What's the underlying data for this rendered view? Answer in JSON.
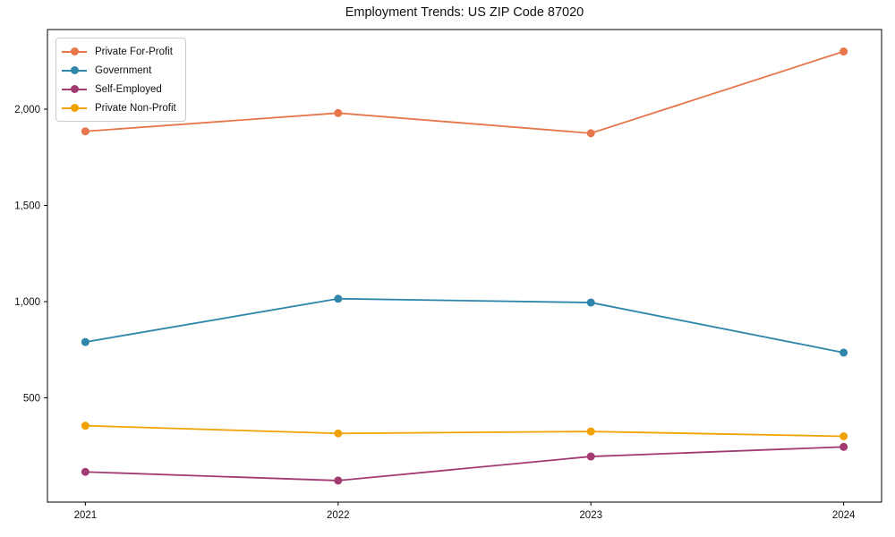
{
  "page": {
    "background": "#ffffff",
    "text_color": "#111111",
    "spine_color": "#000000"
  },
  "chart_data": {
    "type": "line",
    "title": "Employment Trends: US ZIP Code 87020",
    "xlabel": "",
    "ylabel": "",
    "x": [
      2021,
      2022,
      2023,
      2024
    ],
    "x_tick_labels": [
      "2021",
      "2022",
      "2023",
      "2024"
    ],
    "yticks": [
      500,
      1000,
      1500,
      2000
    ],
    "ytick_labels": [
      "500",
      "1,000",
      "1,500",
      "2,000"
    ],
    "xlim": [
      2020.85,
      2024.15
    ],
    "ylim": [
      -42,
      2414
    ],
    "grid": false,
    "legend_position": "upper-left",
    "marker": "circle",
    "series": [
      {
        "name": "Private For-Profit",
        "color": "#E8764B",
        "values": [
          1885,
          1980,
          1875,
          2300
        ]
      },
      {
        "name": "Government",
        "color": "#2E86AB",
        "values": [
          790,
          1015,
          995,
          735
        ]
      },
      {
        "name": "Self-Employed",
        "color": "#A23B72",
        "values": [
          115,
          70,
          195,
          245
        ]
      },
      {
        "name": "Private Non-Profit",
        "color": "#F0A202",
        "values": [
          355,
          315,
          325,
          300
        ]
      }
    ]
  }
}
